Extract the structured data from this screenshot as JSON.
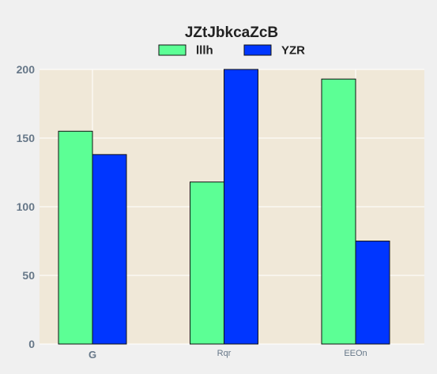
{
  "colors": {
    "page_bg": "#f0f0f0",
    "plot_bg": "#f0e8d8",
    "grid": "#ffffff",
    "series_1": "#5cff95",
    "series_2": "#0036ff",
    "bar_edge": "#111111"
  },
  "chart_data": {
    "type": "bar",
    "title": "JZtJbkcaZcB",
    "xlabel": "",
    "ylabel": "",
    "categories": [
      "G",
      "Rqr",
      "EEOn"
    ],
    "series": [
      {
        "name": "lllh",
        "values": [
          155,
          118,
          193
        ]
      },
      {
        "name": "YZR",
        "values": [
          138,
          200,
          75
        ]
      }
    ],
    "ylim": [
      0,
      200
    ],
    "yticks": [
      0,
      50,
      100,
      150,
      200
    ],
    "grid": true,
    "legend_position": "top-center"
  }
}
